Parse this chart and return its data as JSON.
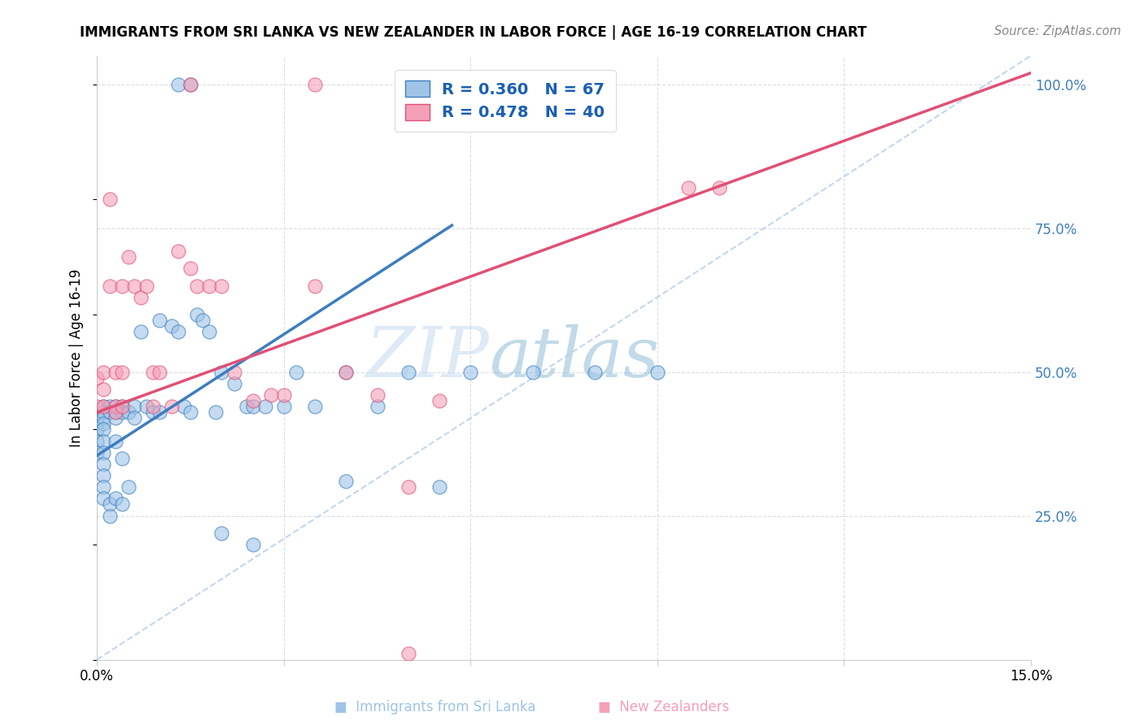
{
  "title": "IMMIGRANTS FROM SRI LANKA VS NEW ZEALANDER IN LABOR FORCE | AGE 16-19 CORRELATION CHART",
  "source": "Source: ZipAtlas.com",
  "ylabel": "In Labor Force | Age 16-19",
  "xlim": [
    0.0,
    0.15
  ],
  "ylim": [
    0.0,
    1.05
  ],
  "sri_lanka_R": 0.36,
  "sri_lanka_N": 67,
  "nz_R": 0.478,
  "nz_N": 40,
  "sri_lanka_color": "#9ec4e8",
  "nz_color": "#f4a0b8",
  "sri_lanka_line_color": "#3d7dbf",
  "nz_line_color": "#e05075",
  "diagonal_color": "#b8d0ea",
  "legend_text_color": "#1a5fb4",
  "right_axis_color": "#3d7dbf",
  "grid_color": "#d8dde8",
  "watermark_color": "#d5e5f5",
  "sl_line_x0": 0.0,
  "sl_line_y0": 0.355,
  "sl_line_x1": 0.057,
  "sl_line_y1": 0.755,
  "nz_line_x0": 0.0,
  "nz_line_y0": 0.43,
  "nz_line_x1": 0.15,
  "nz_line_y1": 1.02,
  "sl_pts_x": [
    0.0,
    0.0,
    0.0,
    0.0,
    0.0,
    0.001,
    0.001,
    0.001,
    0.001,
    0.001,
    0.001,
    0.001,
    0.001,
    0.001,
    0.001,
    0.001,
    0.002,
    0.002,
    0.002,
    0.002,
    0.003,
    0.003,
    0.003,
    0.003,
    0.003,
    0.004,
    0.004,
    0.004,
    0.004,
    0.005,
    0.005,
    0.006,
    0.006,
    0.007,
    0.008,
    0.009,
    0.01,
    0.01,
    0.012,
    0.013,
    0.014,
    0.015,
    0.016,
    0.017,
    0.018,
    0.019,
    0.02,
    0.022,
    0.024,
    0.025,
    0.027,
    0.03,
    0.032,
    0.035,
    0.04,
    0.04,
    0.045,
    0.05,
    0.055,
    0.06,
    0.07,
    0.08,
    0.09,
    0.013,
    0.015,
    0.02,
    0.025
  ],
  "sl_pts_y": [
    0.42,
    0.41,
    0.4,
    0.38,
    0.36,
    0.44,
    0.43,
    0.42,
    0.41,
    0.4,
    0.38,
    0.36,
    0.34,
    0.32,
    0.3,
    0.28,
    0.44,
    0.43,
    0.27,
    0.25,
    0.44,
    0.43,
    0.42,
    0.38,
    0.28,
    0.44,
    0.43,
    0.35,
    0.27,
    0.43,
    0.3,
    0.44,
    0.42,
    0.57,
    0.44,
    0.43,
    0.59,
    0.43,
    0.58,
    0.57,
    0.44,
    0.43,
    0.6,
    0.59,
    0.57,
    0.43,
    0.5,
    0.48,
    0.44,
    0.44,
    0.44,
    0.44,
    0.5,
    0.44,
    0.5,
    0.31,
    0.44,
    0.5,
    0.3,
    0.5,
    0.5,
    0.5,
    0.5,
    1.0,
    1.0,
    0.22,
    0.2
  ],
  "nz_pts_x": [
    0.0,
    0.0,
    0.001,
    0.001,
    0.001,
    0.002,
    0.002,
    0.003,
    0.003,
    0.003,
    0.004,
    0.004,
    0.004,
    0.005,
    0.006,
    0.007,
    0.008,
    0.009,
    0.01,
    0.012,
    0.013,
    0.015,
    0.016,
    0.018,
    0.02,
    0.022,
    0.025,
    0.028,
    0.03,
    0.035,
    0.04,
    0.045,
    0.05,
    0.055,
    0.095,
    0.05,
    0.015,
    0.035,
    0.1,
    0.009
  ],
  "nz_pts_y": [
    0.49,
    0.44,
    0.5,
    0.47,
    0.44,
    0.65,
    0.8,
    0.5,
    0.44,
    0.43,
    0.65,
    0.5,
    0.44,
    0.7,
    0.65,
    0.63,
    0.65,
    0.5,
    0.5,
    0.44,
    0.71,
    0.68,
    0.65,
    0.65,
    0.65,
    0.5,
    0.45,
    0.46,
    0.46,
    0.65,
    0.5,
    0.46,
    0.3,
    0.45,
    0.82,
    0.01,
    1.0,
    1.0,
    0.82,
    0.44
  ]
}
